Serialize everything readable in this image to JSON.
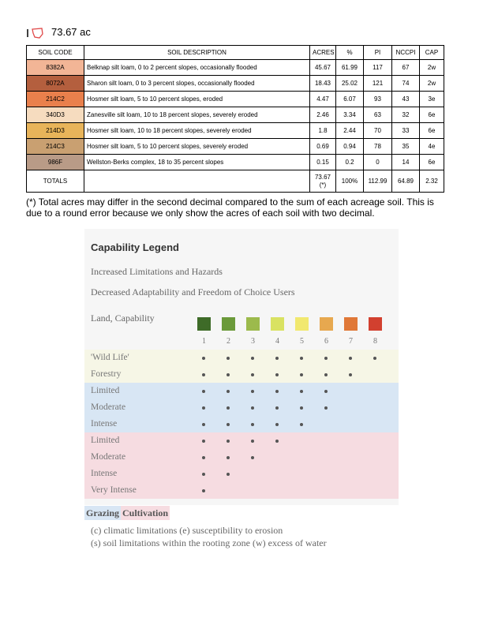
{
  "header": {
    "area": "73.67 ac"
  },
  "table": {
    "columns": [
      "SOIL CODE",
      "SOIL DESCRIPTION",
      "ACRES",
      "%",
      "PI",
      "NCCPI",
      "CAP"
    ],
    "rows": [
      {
        "code": "8382A",
        "description": "Belknap silt loam, 0 to 2 percent slopes, occasionally flooded",
        "acres": 45.67,
        "percent": 61.99,
        "pi": 117,
        "nccpi": 67,
        "cap": "2w",
        "color": "#f2b596"
      },
      {
        "code": "8072A",
        "description": "Sharon silt loam, 0 to 3 percent slopes, occasionally flooded",
        "acres": 18.43,
        "percent": 25.02,
        "pi": 121,
        "nccpi": 74,
        "cap": "2w",
        "color": "#b45f3e"
      },
      {
        "code": "214C2",
        "description": "Hosmer silt loam, 5 to 10 percent slopes, eroded",
        "acres": 4.47,
        "percent": 6.07,
        "pi": 93,
        "nccpi": 43,
        "cap": "3e",
        "color": "#e9804c"
      },
      {
        "code": "340D3",
        "description": "Zanesville silt loam, 10 to 18 percent slopes, severely eroded",
        "acres": 2.46,
        "percent": 3.34,
        "pi": 63,
        "nccpi": 32,
        "cap": "6e",
        "color": "#f6dcbf"
      },
      {
        "code": "214D3",
        "description": "Hosmer silt loam, 10 to 18 percent slopes, severely eroded",
        "acres": 1.8,
        "percent": 2.44,
        "pi": 70,
        "nccpi": 33,
        "cap": "6e",
        "color": "#e8b45a"
      },
      {
        "code": "214C3",
        "description": "Hosmer silt loam, 5 to 10 percent slopes, severely eroded",
        "acres": 0.69,
        "percent": 0.94,
        "pi": 78,
        "nccpi": 35,
        "cap": "4e",
        "color": "#c9a071"
      },
      {
        "code": "986F",
        "description": "Wellston-Berks complex, 18 to 35 percent slopes",
        "acres": 0.15,
        "percent": 0.2,
        "pi": 0,
        "nccpi": 14,
        "cap": "6e",
        "color": "#b99b87"
      }
    ],
    "totals": {
      "label": "TOTALS",
      "acres": "73.67(*)",
      "percent": "100%",
      "pi": "112.99",
      "nccpi": "64.89",
      "cap": "2.32"
    }
  },
  "footnote": "(*) Total acres may differ in the second decimal compared to the sum of each acreage soil. This is due to a round error because we only show the acres of each soil with two decimal.",
  "legend": {
    "title": "Capability Legend",
    "lines": [
      "Increased Limitations and Hazards",
      "Decreased Adaptability and Freedom of Choice Users"
    ],
    "axis_label": "Land, Capability",
    "classes": [
      {
        "label": 1,
        "color": "#3e6b28"
      },
      {
        "label": 2,
        "color": "#6b9a3a"
      },
      {
        "label": 3,
        "color": "#9cba4c"
      },
      {
        "label": 4,
        "color": "#d9e262"
      },
      {
        "label": 5,
        "color": "#f1e86f"
      },
      {
        "label": 6,
        "color": "#e7a84f"
      },
      {
        "label": 7,
        "color": "#e07837"
      },
      {
        "label": 8,
        "color": "#d2402f"
      }
    ],
    "rows": [
      "'Wild Life'",
      "Forestry",
      "Limited",
      "Moderate",
      "Intense",
      "Limited",
      "Moderate",
      "Intense",
      "Very Intense"
    ],
    "key": {
      "grazing": "Grazing",
      "cultivation": "Cultivation"
    },
    "notes": [
      "(c) climatic limitations (e) susceptibility to erosion",
      "(s) soil limitations within the rooting zone (w) excess of water"
    ]
  }
}
